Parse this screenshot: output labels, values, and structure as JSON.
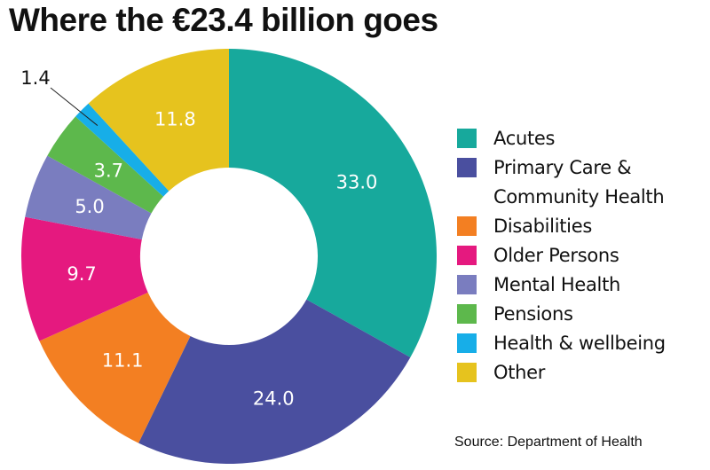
{
  "chart_data": {
    "type": "pie",
    "subtype": "donut",
    "title": "Where the €23.4 billion goes",
    "unit": "percent",
    "categories": [
      "Acutes",
      "Primary Care & Community Health",
      "Disabilities",
      "Older Persons",
      "Mental Health",
      "Pensions",
      "Health & wellbeing",
      "Other"
    ],
    "legend_lines": [
      [
        "Acutes"
      ],
      [
        "Primary Care &",
        "Community Health"
      ],
      [
        "Disabilities"
      ],
      [
        "Older Persons"
      ],
      [
        "Mental Health"
      ],
      [
        "Pensions"
      ],
      [
        "Health & wellbeing"
      ],
      [
        "Other"
      ]
    ],
    "values": [
      33.0,
      24.0,
      11.1,
      9.7,
      5.0,
      3.7,
      1.4,
      11.8
    ],
    "labels": [
      "33.0",
      "24.0",
      "11.1",
      "9.7",
      "5.0",
      "3.7",
      "1.4",
      "11.8"
    ],
    "colors": [
      "#17a99c",
      "#4a4f9f",
      "#f37f22",
      "#e5197f",
      "#7a7dbf",
      "#5db84c",
      "#17aee8",
      "#e6c31e"
    ],
    "legend_placement": "right",
    "source": "Source: Department of Health"
  }
}
